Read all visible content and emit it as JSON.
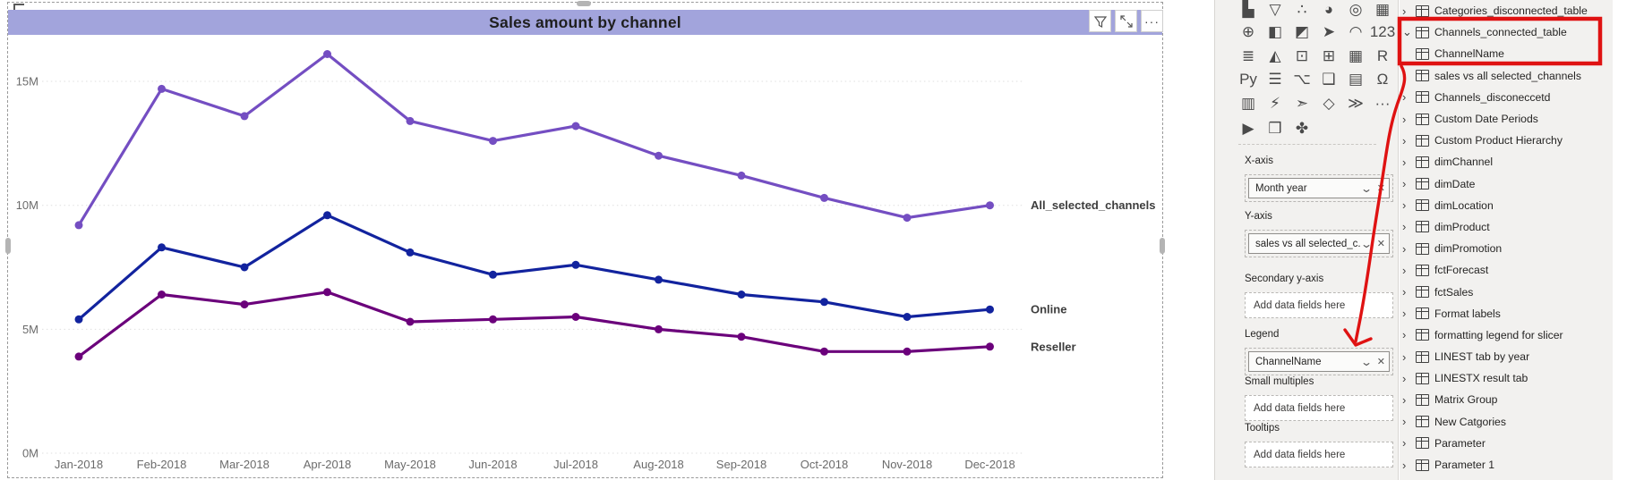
{
  "chart": {
    "title_bar_bg": "#A2A4DC",
    "toolbar": {
      "more_glyph": "···"
    }
  },
  "chart_data": {
    "type": "line",
    "title": "Sales amount by channel",
    "x": [
      "Jan-2018",
      "Feb-2018",
      "Mar-2018",
      "Apr-2018",
      "May-2018",
      "Jun-2018",
      "Jul-2018",
      "Aug-2018",
      "Sep-2018",
      "Oct-2018",
      "Nov-2018",
      "Dec-2018"
    ],
    "series": [
      {
        "name": "All_selected_channels",
        "color": "#744EC2",
        "values": [
          9.2,
          14.7,
          13.6,
          16.1,
          13.4,
          12.6,
          13.2,
          12.0,
          11.2,
          10.3,
          9.5,
          10.0
        ]
      },
      {
        "name": "Online",
        "color": "#12239E",
        "values": [
          5.4,
          8.3,
          7.5,
          9.6,
          8.1,
          7.2,
          7.6,
          7.0,
          6.4,
          6.1,
          5.5,
          5.8
        ]
      },
      {
        "name": "Reseller",
        "color": "#6B007B",
        "values": [
          3.9,
          6.4,
          6.0,
          6.5,
          5.3,
          5.4,
          5.5,
          5.0,
          4.7,
          4.1,
          4.1,
          4.3
        ]
      }
    ],
    "unit": "M",
    "ylim": [
      0,
      16.5
    ],
    "yticks": [
      0,
      5,
      10,
      15
    ],
    "ytick_labels": [
      "0M",
      "5M",
      "10M",
      "15M"
    ],
    "xlabel": "",
    "ylabel": "",
    "grid": "horizontal-dotted",
    "legend": "series-labels-right"
  },
  "viz_pane": {
    "icons_glyphs": {
      "chevron_down": "⌄",
      "remove": "✕"
    },
    "icons": [
      {
        "n": "waterfall-chart-icon",
        "g": "▙",
        "c": "#4a4a4a"
      },
      {
        "n": "funnel-chart-icon",
        "g": "▽",
        "c": "#4a4a4a"
      },
      {
        "n": "scatter-chart-icon",
        "g": "∴",
        "c": "#4a4a4a"
      },
      {
        "n": "pie-chart-icon",
        "g": "◕",
        "c": "#4a4a4a"
      },
      {
        "n": "donut-chart-icon",
        "g": "◎",
        "c": "#4a4a4a"
      },
      {
        "n": "treemap-icon",
        "g": "▦",
        "c": "#4a4a4a"
      },
      {
        "n": "map-icon",
        "g": "⊕",
        "c": "#457a45"
      },
      {
        "n": "filled-map-icon",
        "g": "◧",
        "c": "#5a7fa8"
      },
      {
        "n": "shape-map-icon",
        "g": "◩",
        "c": "#5a7fa8"
      },
      {
        "n": "azure-map-icon",
        "g": "➤",
        "c": "#2B7CD3"
      },
      {
        "n": "gauge-icon",
        "g": "◠",
        "c": "#4a4a4a"
      },
      {
        "n": "card-icon",
        "g": "123",
        "c": "#4a4a4a",
        "cls": "boxed"
      },
      {
        "n": "multi-row-card-icon",
        "g": "≣",
        "c": "#4a4a4a"
      },
      {
        "n": "kpi-icon",
        "g": "◭",
        "c": "#4a4a4a"
      },
      {
        "n": "slicer-icon",
        "g": "⊡",
        "c": "#4a4a4a"
      },
      {
        "n": "table-icon",
        "g": "⊞",
        "c": "#4a4a4a"
      },
      {
        "n": "matrix-icon",
        "g": "▦",
        "c": "#2B7CD3"
      },
      {
        "n": "r-script-icon",
        "g": "R",
        "c": "#2B7CD3",
        "cls": "txt"
      },
      {
        "n": "python-icon",
        "g": "Py",
        "c": "#2B7CD3",
        "cls": "txt"
      },
      {
        "n": "key-influencers-icon",
        "g": "☰",
        "c": "#4a4a4a"
      },
      {
        "n": "decomposition-tree-icon",
        "g": "⌥",
        "c": "#4a4a4a"
      },
      {
        "n": "qa-icon",
        "g": "❑",
        "c": "#2B7CD3"
      },
      {
        "n": "smart-narrative-icon",
        "g": "▤",
        "c": "#4a4a4a"
      },
      {
        "n": "metrics-icon",
        "g": "Ω",
        "c": "#2B7CD3"
      },
      {
        "n": "paginated-report-icon",
        "g": "▥",
        "c": "#4a4a4a"
      },
      {
        "n": "scorecard-icon",
        "g": "⚡",
        "c": "#c87f0a"
      },
      {
        "n": "arcgis-map-icon",
        "g": "➣",
        "c": "#c4622d"
      },
      {
        "n": "power-apps-icon",
        "g": "◇",
        "c": "#8a2da5"
      },
      {
        "n": "power-automate-icon",
        "g": "≫",
        "c": "#2B7CD3"
      },
      {
        "n": "get-more-visuals-icon",
        "g": "···",
        "c": "#4a4a4a",
        "cls": "txt"
      },
      {
        "n": "play-axis-icon",
        "g": "▶",
        "c": "#E8B800"
      },
      {
        "n": "custom-visual-squares-icon",
        "g": "❒",
        "c": "#1f3864"
      },
      {
        "n": "custom-visual-clover-icon",
        "g": "✤",
        "c": "#2B7CD3"
      }
    ],
    "wells": [
      {
        "label": "X-axis",
        "value": "Month year"
      },
      {
        "label": "Y-axis",
        "value": "sales vs all selected_c..."
      },
      {
        "label": "Secondary y-axis",
        "placeholder": "Add data fields here"
      },
      {
        "label": "Legend",
        "value": "ChannelName"
      },
      {
        "label": "Small multiples",
        "placeholder": "Add data fields here"
      },
      {
        "label": "Tooltips",
        "placeholder": "Add data fields here"
      }
    ]
  },
  "fields_pane": {
    "items": [
      {
        "label": "Categories_disconnected_table",
        "cls": "lvl0 calc",
        "chev": "›"
      },
      {
        "label": "Channels_connected_table",
        "cls": "lvl0 calc badge",
        "chev": "⌄"
      },
      {
        "label": "ChannelName",
        "cls": "lvl1 checked noicon",
        "chev": ""
      },
      {
        "label": "sales vs all selected_channels",
        "cls": "lvl1 checked measure",
        "chev": ""
      },
      {
        "label": "Channels_disconeccetd",
        "cls": "lvl0 calc",
        "chev": "›"
      },
      {
        "label": "Custom Date Periods",
        "cls": "lvl0 calc",
        "chev": "›"
      },
      {
        "label": "Custom Product Hierarchy",
        "cls": "lvl0 calc",
        "chev": "›"
      },
      {
        "label": "dimChannel",
        "cls": "lvl0 tbl",
        "chev": "›"
      },
      {
        "label": "dimDate",
        "cls": "lvl0 tbl badge",
        "chev": "›"
      },
      {
        "label": "dimLocation",
        "cls": "lvl0 tbl",
        "chev": "›"
      },
      {
        "label": "dimProduct",
        "cls": "lvl0 tbl",
        "chev": "›"
      },
      {
        "label": "dimPromotion",
        "cls": "lvl0 tbl",
        "chev": "›"
      },
      {
        "label": "fctForecast",
        "cls": "lvl0 tbl",
        "chev": "›"
      },
      {
        "label": "fctSales",
        "cls": "lvl0 tbl",
        "chev": "›"
      },
      {
        "label": "Format labels",
        "cls": "lvl0 tbl",
        "chev": "›"
      },
      {
        "label": "formatting legend for slicer",
        "cls": "lvl0 tbl",
        "chev": "›"
      },
      {
        "label": "LINEST tab by year",
        "cls": "lvl0 calc",
        "chev": "›"
      },
      {
        "label": "LINESTX result tab",
        "cls": "lvl0 calc",
        "chev": "›"
      },
      {
        "label": "Matrix Group",
        "cls": "lvl0 tbl",
        "chev": "›"
      },
      {
        "label": "New Catgories",
        "cls": "lvl0 tbl",
        "chev": "›"
      },
      {
        "label": "Parameter",
        "cls": "lvl0 calc",
        "chev": "›"
      },
      {
        "label": "Parameter 1",
        "cls": "lvl0 calc",
        "chev": "›"
      }
    ]
  },
  "annotations": {
    "color": "#DF1212"
  }
}
